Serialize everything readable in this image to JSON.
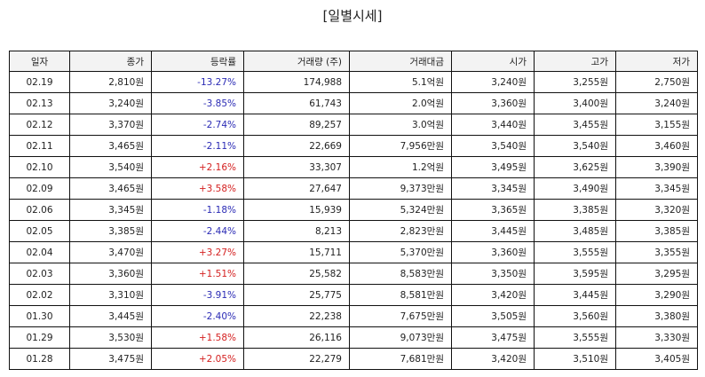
{
  "title": "[일별시세]",
  "colors": {
    "up": "#d42020",
    "down": "#2b2bb5"
  },
  "columns": [
    "일자",
    "종가",
    "등락률",
    "거래량 (주)",
    "거래대금",
    "시가",
    "고가",
    "저가"
  ],
  "rows": [
    {
      "date": "02.19",
      "close": "2,810원",
      "change": "-13.27%",
      "dir": "down",
      "volume": "174,988",
      "amount": "5.1억원",
      "open": "3,240원",
      "high": "3,255원",
      "low": "2,750원"
    },
    {
      "date": "02.13",
      "close": "3,240원",
      "change": "-3.85%",
      "dir": "down",
      "volume": "61,743",
      "amount": "2.0억원",
      "open": "3,360원",
      "high": "3,400원",
      "low": "3,240원"
    },
    {
      "date": "02.12",
      "close": "3,370원",
      "change": "-2.74%",
      "dir": "down",
      "volume": "89,257",
      "amount": "3.0억원",
      "open": "3,440원",
      "high": "3,455원",
      "low": "3,155원"
    },
    {
      "date": "02.11",
      "close": "3,465원",
      "change": "-2.11%",
      "dir": "down",
      "volume": "22,669",
      "amount": "7,956만원",
      "open": "3,540원",
      "high": "3,540원",
      "low": "3,460원"
    },
    {
      "date": "02.10",
      "close": "3,540원",
      "change": "+2.16%",
      "dir": "up",
      "volume": "33,307",
      "amount": "1.2억원",
      "open": "3,495원",
      "high": "3,625원",
      "low": "3,390원"
    },
    {
      "date": "02.09",
      "close": "3,465원",
      "change": "+3.58%",
      "dir": "up",
      "volume": "27,647",
      "amount": "9,373만원",
      "open": "3,345원",
      "high": "3,490원",
      "low": "3,345원"
    },
    {
      "date": "02.06",
      "close": "3,345원",
      "change": "-1.18%",
      "dir": "down",
      "volume": "15,939",
      "amount": "5,324만원",
      "open": "3,365원",
      "high": "3,385원",
      "low": "3,320원"
    },
    {
      "date": "02.05",
      "close": "3,385원",
      "change": "-2.44%",
      "dir": "down",
      "volume": "8,213",
      "amount": "2,823만원",
      "open": "3,445원",
      "high": "3,485원",
      "low": "3,385원"
    },
    {
      "date": "02.04",
      "close": "3,470원",
      "change": "+3.27%",
      "dir": "up",
      "volume": "15,711",
      "amount": "5,370만원",
      "open": "3,360원",
      "high": "3,555원",
      "low": "3,355원"
    },
    {
      "date": "02.03",
      "close": "3,360원",
      "change": "+1.51%",
      "dir": "up",
      "volume": "25,582",
      "amount": "8,583만원",
      "open": "3,350원",
      "high": "3,595원",
      "low": "3,295원"
    },
    {
      "date": "02.02",
      "close": "3,310원",
      "change": "-3.91%",
      "dir": "down",
      "volume": "25,775",
      "amount": "8,581만원",
      "open": "3,420원",
      "high": "3,445원",
      "low": "3,290원"
    },
    {
      "date": "01.30",
      "close": "3,445원",
      "change": "-2.40%",
      "dir": "down",
      "volume": "22,238",
      "amount": "7,675만원",
      "open": "3,505원",
      "high": "3,560원",
      "low": "3,380원"
    },
    {
      "date": "01.29",
      "close": "3,530원",
      "change": "+1.58%",
      "dir": "up",
      "volume": "26,116",
      "amount": "9,073만원",
      "open": "3,475원",
      "high": "3,555원",
      "low": "3,330원"
    },
    {
      "date": "01.28",
      "close": "3,475원",
      "change": "+2.05%",
      "dir": "up",
      "volume": "22,279",
      "amount": "7,681만원",
      "open": "3,420원",
      "high": "3,510원",
      "low": "3,405원"
    }
  ]
}
